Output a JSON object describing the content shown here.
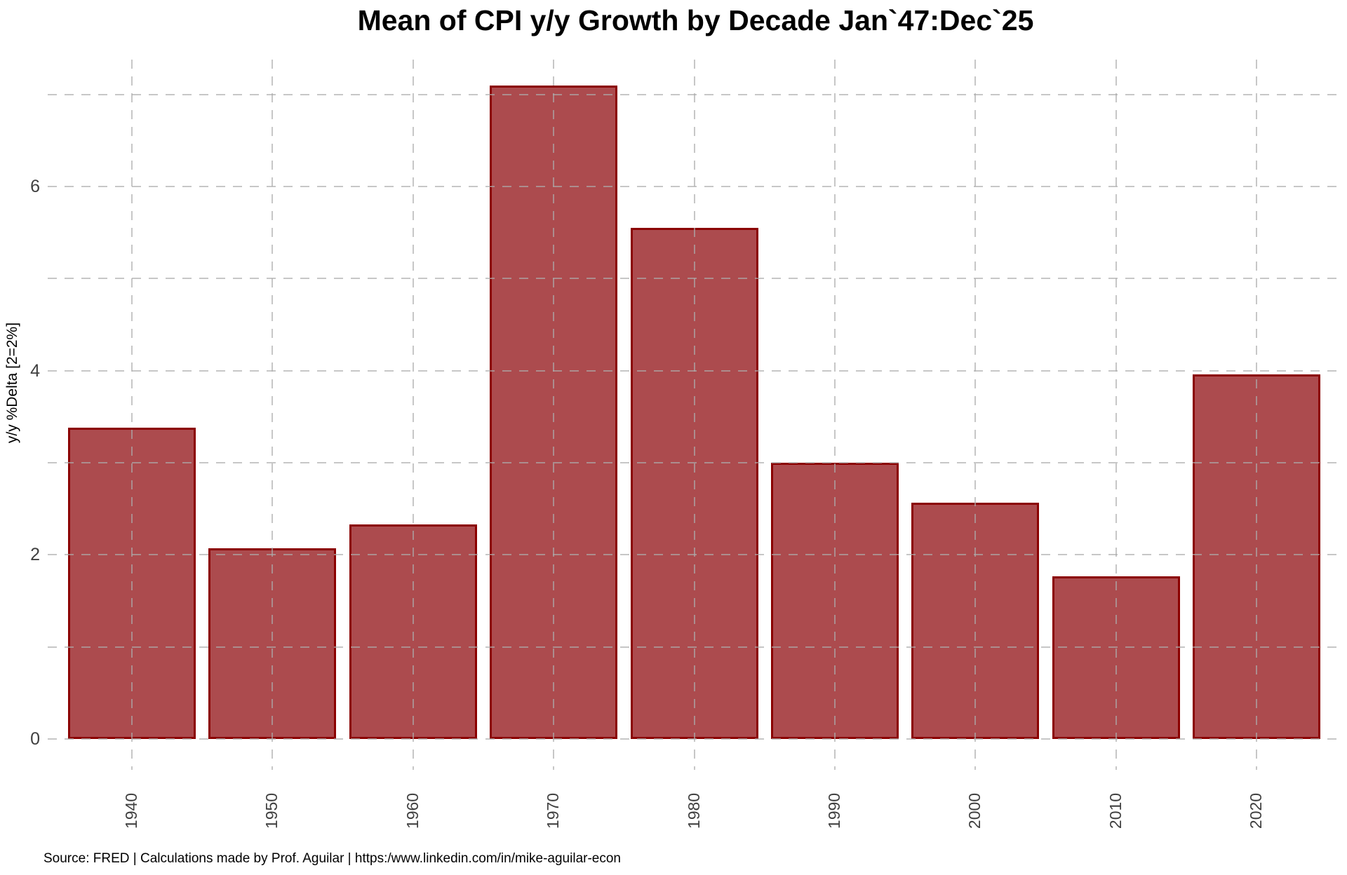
{
  "chart_data": {
    "type": "bar",
    "title": "Mean of CPI y/y Growth by Decade Jan`47:Dec`25",
    "xlabel": "",
    "ylabel": "y/y %Delta [2=2%]",
    "categories": [
      "1940",
      "1950",
      "1960",
      "1970",
      "1980",
      "1990",
      "2000",
      "2010",
      "2020"
    ],
    "values": [
      3.38,
      2.07,
      2.33,
      7.1,
      5.55,
      3.0,
      2.57,
      1.77,
      3.96
    ],
    "series_name": "Mean of CPI y/y growth by decade (%)",
    "ylim": [
      0,
      7.38
    ],
    "ytick_values": [
      0,
      2,
      4,
      6
    ],
    "ytick_labels": [
      "0",
      "2",
      "4",
      "6"
    ],
    "gridline_values": [
      0,
      1,
      2,
      3,
      4,
      5,
      6,
      7
    ],
    "grid": "dashed light-gray horizontal lines at every integer, dashed vertical lines at every bar center, drawn visible over bars",
    "legend": "none",
    "colors": {
      "bar_fill": "#AC4B4E",
      "bar_border": "#8B0000",
      "gridline": "#C9C9C9",
      "tick_label": "#404040",
      "title": "#000000",
      "background": "#FFFFFF"
    },
    "source_note": "Source: FRED | Calculations made by Prof. Aguilar | https:/www.linkedin.com/in/mike-aguilar-econ"
  }
}
